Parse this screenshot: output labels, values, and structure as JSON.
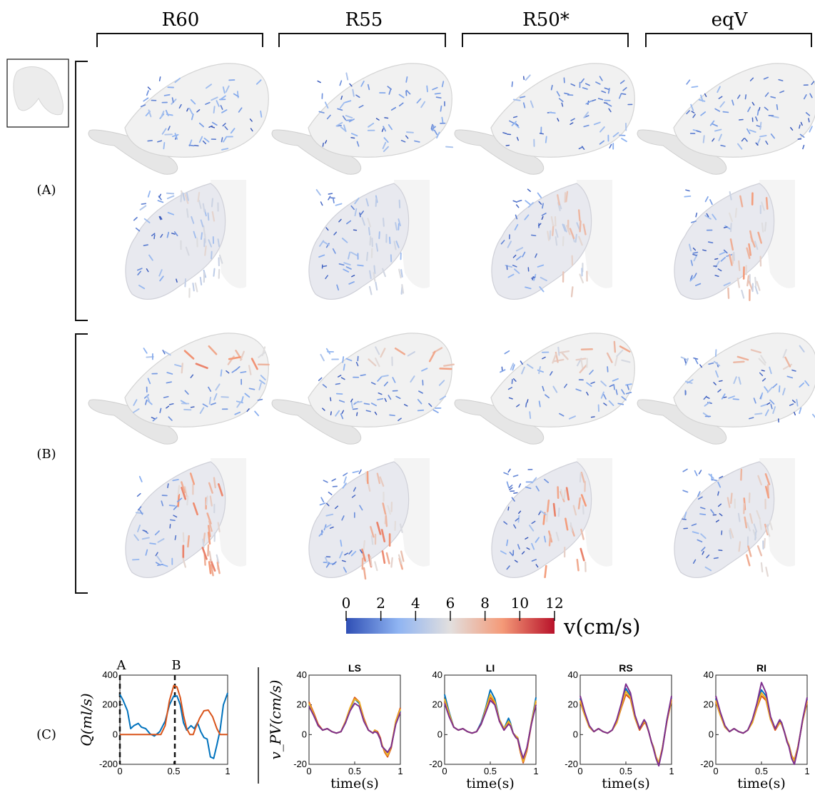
{
  "columns": [
    "R60",
    "R55",
    "R50*",
    "eqV"
  ],
  "rows": [
    {
      "label": "(A)",
      "views": [
        "top",
        "side"
      ]
    },
    {
      "label": "(B)",
      "views": [
        "top",
        "side"
      ]
    }
  ],
  "vector_levels": {
    "A": [
      {
        "top": 0.35,
        "side": 0.55
      },
      {
        "top": 0.25,
        "side": 0.5
      },
      {
        "top": 0.18,
        "side": 0.65
      },
      {
        "top": 0.15,
        "side": 0.75
      }
    ],
    "B": [
      {
        "top": 0.8,
        "side": 0.8
      },
      {
        "top": 0.75,
        "side": 0.8
      },
      {
        "top": 0.7,
        "side": 0.8
      },
      {
        "top": 0.7,
        "side": 0.75
      }
    ]
  },
  "colorbar": {
    "label": "v(cm/s)",
    "ticks": [
      "0",
      "2",
      "4",
      "6",
      "8",
      "10",
      "12"
    ],
    "min": 0,
    "max": 12,
    "colors": [
      "#2f4fb5",
      "#8fb4f2",
      "#e2dfde",
      "#f49a78",
      "#b8122a"
    ]
  },
  "colors": {
    "line_blue": "#0072bd",
    "line_orange": "#d95319",
    "line_yellow": "#edb120",
    "line_purple": "#7e2f8e"
  },
  "panel_c_label": "(C)",
  "chart_data": [
    {
      "type": "line",
      "ylabel": "Q(ml/s)",
      "xlabel": "",
      "xlim": [
        0,
        1
      ],
      "ylim": [
        -200,
        400
      ],
      "xticks": [
        "0",
        "0.5",
        "1"
      ],
      "yticks": [
        "-200",
        "0",
        "200",
        "400"
      ],
      "markers": [
        {
          "x": 0,
          "label": "A"
        },
        {
          "x": 0.51,
          "label": "B"
        }
      ],
      "series": [
        {
          "color": "#0072bd",
          "x": [
            0,
            0.03,
            0.07,
            0.1,
            0.13,
            0.17,
            0.2,
            0.24,
            0.28,
            0.32,
            0.37,
            0.42,
            0.46,
            0.5,
            0.53,
            0.56,
            0.59,
            0.62,
            0.66,
            0.69,
            0.72,
            0.75,
            0.78,
            0.81,
            0.84,
            0.87,
            0.9,
            0.93,
            0.96,
            1.0
          ],
          "y": [
            270,
            230,
            160,
            40,
            60,
            75,
            50,
            40,
            5,
            -10,
            20,
            90,
            200,
            260,
            260,
            200,
            80,
            30,
            60,
            40,
            80,
            20,
            -20,
            -30,
            -150,
            -160,
            -70,
            30,
            200,
            280
          ]
        },
        {
          "color": "#d95319",
          "x": [
            0,
            0.1,
            0.2,
            0.3,
            0.38,
            0.42,
            0.46,
            0.5,
            0.53,
            0.56,
            0.59,
            0.62,
            0.65,
            0.68,
            0.7,
            0.74,
            0.78,
            0.82,
            0.86,
            0.9,
            0.93,
            0.96,
            1.0
          ],
          "y": [
            0,
            0,
            0,
            0,
            0,
            60,
            230,
            330,
            320,
            250,
            130,
            40,
            0,
            0,
            40,
            110,
            160,
            165,
            120,
            40,
            0,
            0,
            0
          ]
        }
      ]
    },
    {
      "type": "line",
      "title": "LS",
      "xlabel": "time(s)",
      "ylabel": "v_PV(cm/s)",
      "xlim": [
        0,
        1
      ],
      "ylim": [
        -20,
        40
      ],
      "xticks": [
        "0",
        "0.5",
        "1"
      ],
      "yticks": [
        "-20",
        "0",
        "20",
        "40"
      ],
      "x": [
        0,
        0.05,
        0.1,
        0.15,
        0.2,
        0.25,
        0.3,
        0.35,
        0.4,
        0.45,
        0.5,
        0.55,
        0.6,
        0.65,
        0.7,
        0.72,
        0.75,
        0.78,
        0.8,
        0.83,
        0.86,
        0.9,
        0.95,
        1.0
      ],
      "series": [
        {
          "color": "#0072bd",
          "values": [
            20,
            14,
            6,
            3,
            4,
            2,
            1,
            2,
            8,
            17,
            24,
            21,
            10,
            3,
            1,
            3,
            1,
            -3,
            -8,
            -10,
            -12,
            -8,
            8,
            16
          ]
        },
        {
          "color": "#d95319",
          "values": [
            22,
            15,
            7,
            3,
            4,
            2,
            1,
            2,
            9,
            18,
            25,
            22,
            11,
            3,
            1,
            3,
            2,
            -2,
            -7,
            -12,
            -15,
            -9,
            9,
            18
          ]
        },
        {
          "color": "#edb120",
          "values": [
            21,
            14,
            6,
            3,
            4,
            2,
            1,
            2,
            9,
            18,
            24,
            22,
            10,
            3,
            1,
            3,
            1,
            -3,
            -7,
            -11,
            -14,
            -8,
            9,
            17
          ]
        },
        {
          "color": "#7e2f8e",
          "values": [
            19,
            13,
            6,
            3,
            4,
            2,
            1,
            2,
            8,
            16,
            21,
            19,
            9,
            3,
            1,
            2,
            1,
            -3,
            -8,
            -10,
            -12,
            -8,
            7,
            15
          ]
        }
      ]
    },
    {
      "type": "line",
      "title": "LI",
      "xlabel": "time(s)",
      "xlim": [
        0,
        1
      ],
      "ylim": [
        -20,
        40
      ],
      "xticks": [
        "0",
        "0.5",
        "1"
      ],
      "yticks": [
        "-20",
        "0",
        "20",
        "40"
      ],
      "x": [
        0,
        0.05,
        0.1,
        0.15,
        0.2,
        0.25,
        0.3,
        0.35,
        0.4,
        0.45,
        0.5,
        0.55,
        0.6,
        0.65,
        0.7,
        0.72,
        0.75,
        0.78,
        0.8,
        0.83,
        0.86,
        0.9,
        0.95,
        1.0
      ],
      "series": [
        {
          "color": "#0072bd",
          "values": [
            27,
            15,
            5,
            3,
            4,
            2,
            1,
            2,
            8,
            18,
            30,
            24,
            10,
            4,
            11,
            8,
            1,
            -1,
            -2,
            -10,
            -17,
            -10,
            8,
            25
          ]
        },
        {
          "color": "#d95319",
          "values": [
            22,
            13,
            5,
            3,
            4,
            2,
            1,
            2,
            7,
            16,
            25,
            21,
            9,
            3,
            8,
            6,
            1,
            -2,
            -3,
            -12,
            -19,
            -11,
            7,
            22
          ]
        },
        {
          "color": "#edb120",
          "values": [
            24,
            14,
            5,
            3,
            4,
            2,
            1,
            2,
            7,
            17,
            27,
            22,
            10,
            4,
            9,
            7,
            1,
            -1,
            -2,
            -11,
            -18,
            -10,
            8,
            23
          ]
        },
        {
          "color": "#7e2f8e",
          "values": [
            21,
            12,
            5,
            3,
            4,
            2,
            1,
            2,
            7,
            15,
            23,
            20,
            9,
            3,
            7,
            6,
            1,
            -2,
            -3,
            -10,
            -16,
            -9,
            7,
            20
          ]
        }
      ]
    },
    {
      "type": "line",
      "title": "RS",
      "xlabel": "time(s)",
      "xlim": [
        0,
        1
      ],
      "ylim": [
        -20,
        40
      ],
      "xticks": [
        "0",
        "0.5",
        "1"
      ],
      "yticks": [
        "-20",
        "0",
        "20",
        "40"
      ],
      "x": [
        0,
        0.05,
        0.1,
        0.15,
        0.2,
        0.25,
        0.3,
        0.35,
        0.4,
        0.45,
        0.5,
        0.55,
        0.6,
        0.65,
        0.7,
        0.72,
        0.75,
        0.78,
        0.8,
        0.83,
        0.86,
        0.9,
        0.95,
        1.0
      ],
      "series": [
        {
          "color": "#0072bd",
          "values": [
            24,
            14,
            5,
            2,
            4,
            2,
            1,
            3,
            9,
            20,
            31,
            26,
            12,
            4,
            9,
            8,
            2,
            -5,
            -8,
            -15,
            -20,
            -9,
            10,
            25
          ]
        },
        {
          "color": "#d95319",
          "values": [
            22,
            13,
            5,
            2,
            4,
            2,
            1,
            3,
            8,
            18,
            27,
            24,
            11,
            3,
            8,
            7,
            2,
            -5,
            -8,
            -15,
            -19,
            -9,
            9,
            23
          ]
        },
        {
          "color": "#edb120",
          "values": [
            23,
            13,
            5,
            2,
            4,
            2,
            1,
            3,
            8,
            19,
            29,
            25,
            11,
            4,
            9,
            7,
            2,
            -5,
            -8,
            -15,
            -19,
            -9,
            9,
            24
          ]
        },
        {
          "color": "#7e2f8e",
          "values": [
            26,
            15,
            6,
            2,
            4,
            2,
            1,
            3,
            10,
            21,
            34,
            28,
            13,
            4,
            10,
            8,
            2,
            -5,
            -9,
            -16,
            -21,
            -10,
            10,
            26
          ]
        }
      ]
    },
    {
      "type": "line",
      "title": "RI",
      "xlabel": "time(s)",
      "xlim": [
        0,
        1
      ],
      "ylim": [
        -20,
        40
      ],
      "xticks": [
        "0",
        "0.5",
        "1"
      ],
      "yticks": [
        "-20",
        "0",
        "20",
        "40"
      ],
      "x": [
        0,
        0.05,
        0.1,
        0.15,
        0.2,
        0.25,
        0.3,
        0.35,
        0.4,
        0.45,
        0.5,
        0.55,
        0.6,
        0.65,
        0.7,
        0.72,
        0.75,
        0.78,
        0.8,
        0.83,
        0.86,
        0.9,
        0.95,
        1.0
      ],
      "series": [
        {
          "color": "#0072bd",
          "values": [
            24,
            14,
            5,
            2,
            4,
            2,
            1,
            3,
            9,
            20,
            30,
            26,
            11,
            4,
            9,
            8,
            2,
            -4,
            -7,
            -14,
            -18,
            -8,
            9,
            24
          ]
        },
        {
          "color": "#d95319",
          "values": [
            22,
            13,
            5,
            2,
            4,
            2,
            1,
            3,
            8,
            18,
            26,
            23,
            10,
            3,
            8,
            7,
            2,
            -4,
            -7,
            -14,
            -17,
            -8,
            9,
            22
          ]
        },
        {
          "color": "#edb120",
          "values": [
            23,
            13,
            5,
            2,
            4,
            2,
            1,
            3,
            8,
            19,
            28,
            24,
            10,
            4,
            8,
            7,
            2,
            -4,
            -7,
            -14,
            -18,
            -8,
            9,
            23
          ]
        },
        {
          "color": "#7e2f8e",
          "values": [
            26,
            15,
            6,
            2,
            4,
            2,
            1,
            3,
            10,
            21,
            35,
            28,
            12,
            4,
            10,
            8,
            2,
            -5,
            -8,
            -16,
            -20,
            -9,
            10,
            25
          ]
        }
      ]
    }
  ]
}
